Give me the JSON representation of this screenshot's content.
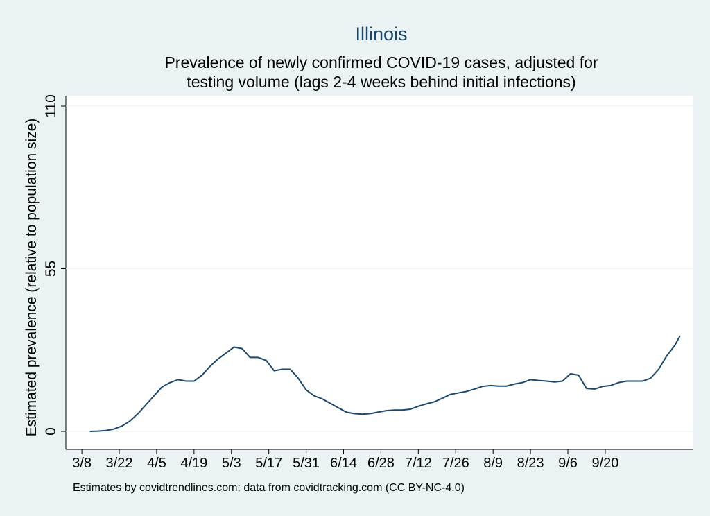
{
  "chart_data": {
    "type": "line",
    "title": "Illinois",
    "subtitle": [
      "Prevalence of newly confirmed COVID-19 cases, adjusted for",
      "testing volume (lags 2-4 weeks behind initial infections)"
    ],
    "y_label": "Estimated prevalence (relative to population size)",
    "note": "Estimates by covidtrendlines.com; data from covidtracking.com (CC BY-NC-4.0)",
    "x": [
      "3/11",
      "3/14",
      "3/17",
      "3/20",
      "3/23",
      "3/26",
      "3/29",
      "4/1",
      "4/4",
      "4/7",
      "4/10",
      "4/13",
      "4/16",
      "4/19",
      "4/22",
      "4/25",
      "4/28",
      "5/1",
      "5/4",
      "5/7",
      "5/10",
      "5/13",
      "5/16",
      "5/19",
      "5/22",
      "5/25",
      "5/28",
      "5/31",
      "6/3",
      "6/6",
      "6/9",
      "6/12",
      "6/15",
      "6/18",
      "6/21",
      "6/24",
      "6/27",
      "6/30",
      "7/3",
      "7/6",
      "7/9",
      "7/12",
      "7/15",
      "7/18",
      "7/21",
      "7/24",
      "7/27",
      "7/30",
      "8/2",
      "8/5",
      "8/8",
      "8/11",
      "8/14",
      "8/17",
      "8/20",
      "8/23",
      "8/26",
      "8/29",
      "9/1",
      "9/4",
      "9/7",
      "9/10",
      "9/13",
      "9/16",
      "9/19",
      "9/22",
      "9/25",
      "9/28",
      "10/1",
      "10/4",
      "10/7",
      "10/10",
      "10/13",
      "10/16",
      "10/18"
    ],
    "series": [
      {
        "name": "Illinois",
        "color": "#1a476f",
        "values": [
          0,
          0.1,
          0.3,
          0.8,
          1.8,
          3.5,
          6,
          9,
          12,
          15,
          16.5,
          17.5,
          17,
          17,
          19,
          22,
          24.5,
          26.5,
          28.5,
          28,
          25,
          25,
          24,
          20.5,
          21,
          21,
          18,
          14,
          12,
          11,
          9.5,
          8,
          6.5,
          6,
          5.8,
          6,
          6.5,
          7,
          7.2,
          7.2,
          7.5,
          8.5,
          9.3,
          10,
          11.2,
          12.5,
          13,
          13.5,
          14.3,
          15.2,
          15.5,
          15.3,
          15.3,
          16,
          16.5,
          17.5,
          17.2,
          17,
          16.7,
          17,
          19.5,
          19,
          14.5,
          14.3,
          15.2,
          15.5,
          16.5,
          17,
          17,
          17,
          18,
          21,
          25.5,
          29,
          32.3
        ]
      }
    ],
    "xlim": [
      "3/2",
      "10/23"
    ],
    "xticks": [
      "3/8",
      "3/22",
      "4/5",
      "4/19",
      "5/3",
      "5/17",
      "5/31",
      "6/14",
      "6/28",
      "7/12",
      "7/26",
      "8/9",
      "8/23",
      "9/6",
      "9/20"
    ],
    "ylim": [
      0,
      110
    ],
    "yticks": [
      0,
      55,
      110
    ],
    "grid": true
  }
}
